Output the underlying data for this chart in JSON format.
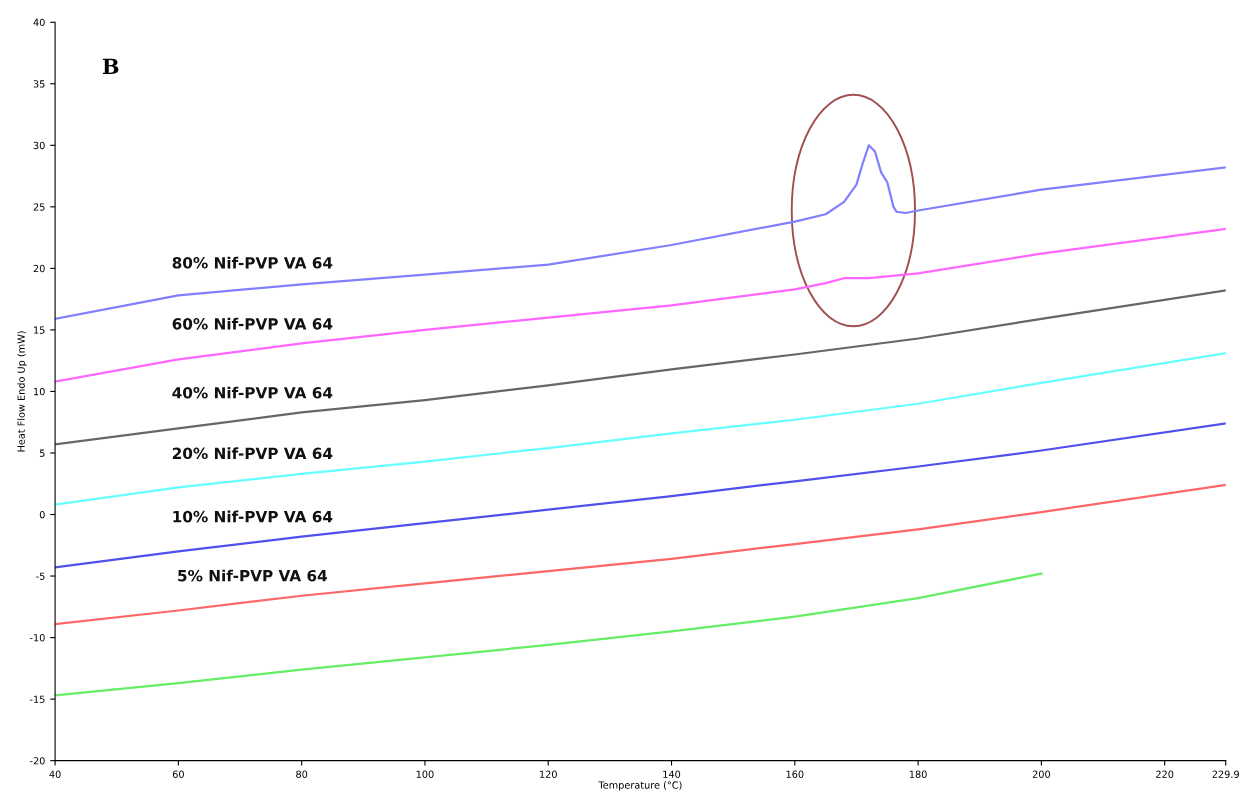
{
  "chart_data": {
    "type": "line",
    "ylabel": "Heat Flow Endo Up (mW)",
    "xlabel": "Temperature (°C)",
    "annotations": [
      "B"
    ],
    "xlim": [
      40,
      229.9
    ],
    "xticks": [
      40,
      60,
      80,
      100,
      120,
      140,
      160,
      180,
      200,
      220,
      {
        "value": 229.9,
        "label": "229.9"
      }
    ],
    "ylim": [
      -20,
      40
    ],
    "yticks": [
      -20,
      -15,
      -10,
      -5,
      0,
      5,
      10,
      15,
      20,
      25,
      30,
      35,
      40
    ],
    "grid": false,
    "legend": false,
    "marker": "none",
    "line_style": "solid",
    "series": [
      {
        "name": "80% Nif-PVP VA 64",
        "color": "#8080ff",
        "x": [
          40,
          60,
          80,
          100,
          120,
          140,
          160,
          165,
          168,
          170,
          171,
          172,
          173,
          174,
          175,
          176,
          176.5,
          178,
          180,
          200,
          229.9
        ],
        "values": [
          15.9,
          17.8,
          18.7,
          19.5,
          20.3,
          21.9,
          23.8,
          24.4,
          25.4,
          26.8,
          28.5,
          30.0,
          29.5,
          27.8,
          27.0,
          25.0,
          24.6,
          24.5,
          24.7,
          26.4,
          28.2
        ]
      },
      {
        "name": "60% Nif-PVP VA 64",
        "color": "#ff66ff",
        "x": [
          40,
          60,
          80,
          100,
          120,
          140,
          160,
          165,
          168,
          172,
          180,
          200,
          229.9
        ],
        "values": [
          10.8,
          12.6,
          13.9,
          15.0,
          16.0,
          17.0,
          18.3,
          18.8,
          19.2,
          19.2,
          19.6,
          21.2,
          23.2
        ]
      },
      {
        "name": "40% Nif-PVP VA 64",
        "color": "#666666",
        "x": [
          40,
          60,
          80,
          100,
          120,
          140,
          160,
          180,
          200,
          229.9
        ],
        "values": [
          5.7,
          7.0,
          8.3,
          9.3,
          10.5,
          11.8,
          13.0,
          14.3,
          15.9,
          18.2
        ]
      },
      {
        "name": "20% Nif-PVP VA 64",
        "color": "#66ffff",
        "x": [
          40,
          60,
          80,
          100,
          120,
          140,
          160,
          180,
          200,
          229.9
        ],
        "values": [
          0.8,
          2.2,
          3.3,
          4.3,
          5.4,
          6.6,
          7.7,
          9.0,
          10.7,
          13.1
        ]
      },
      {
        "name": "10% Nif-PVP VA 64",
        "color": "#5050ee",
        "x": [
          40,
          60,
          80,
          100,
          120,
          140,
          160,
          180,
          200,
          229.9
        ],
        "values": [
          -4.3,
          -3.0,
          -1.8,
          -0.7,
          0.4,
          1.5,
          2.7,
          3.9,
          5.2,
          7.4
        ]
      },
      {
        "name": "5% Nif-PVP VA 64",
        "color": "#ff6666",
        "x": [
          40,
          60,
          80,
          100,
          120,
          140,
          160,
          180,
          200,
          229.9
        ],
        "values": [
          -8.9,
          -7.8,
          -6.6,
          -5.6,
          -4.6,
          -3.6,
          -2.4,
          -1.2,
          0.2,
          2.4
        ]
      },
      {
        "color": "#66ee66",
        "x": [
          40,
          60,
          80,
          100,
          120,
          140,
          160,
          180,
          200
        ],
        "values": [
          -14.7,
          -13.7,
          -12.6,
          -11.6,
          -10.6,
          -9.5,
          -8.3,
          -6.8,
          -4.8
        ]
      }
    ]
  }
}
